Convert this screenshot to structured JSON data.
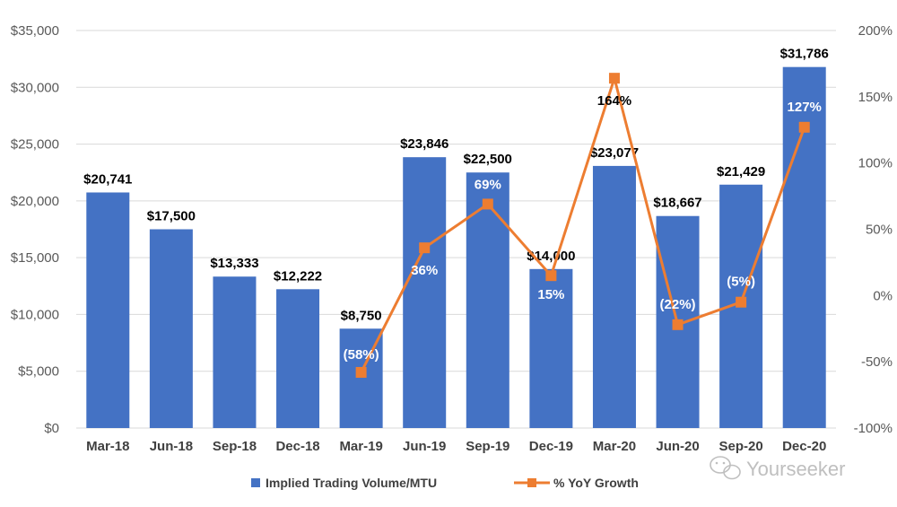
{
  "chart_data": {
    "type": "bar",
    "categories": [
      "Mar-18",
      "Jun-18",
      "Sep-18",
      "Dec-18",
      "Mar-19",
      "Jun-19",
      "Sep-19",
      "Dec-19",
      "Mar-20",
      "Jun-20",
      "Sep-20",
      "Dec-20"
    ],
    "series": [
      {
        "name": "Implied Trading Volume/MTU",
        "type": "bar",
        "axis": "left",
        "color": "#4472C4",
        "values": [
          20741,
          17500,
          13333,
          12222,
          8750,
          23846,
          22500,
          14000,
          23077,
          18667,
          21429,
          31786
        ],
        "labels": [
          "$20,741",
          "$17,500",
          "$13,333",
          "$12,222",
          "$8,750",
          "$23,846",
          "$22,500",
          "$14,000",
          "$23,077",
          "$18,667",
          "$21,429",
          "$31,786"
        ]
      },
      {
        "name": "% YoY Growth",
        "type": "line",
        "axis": "right",
        "color": "#ED7D31",
        "marker": "square",
        "values": [
          null,
          null,
          null,
          null,
          -58,
          36,
          69,
          15,
          164,
          -22,
          -5,
          127
        ],
        "labels": [
          "",
          "",
          "",
          "",
          "(58%)",
          "36%",
          "69%",
          "15%",
          "164%",
          "(22%)",
          "(5%)",
          "127%"
        ]
      }
    ],
    "y_left": {
      "lim": [
        0,
        35000
      ],
      "ticks": [
        0,
        5000,
        10000,
        15000,
        20000,
        25000,
        30000,
        35000
      ],
      "tick_labels": [
        "$0",
        "$5,000",
        "$10,000",
        "$15,000",
        "$20,000",
        "$25,000",
        "$30,000",
        "$35,000"
      ]
    },
    "y_right": {
      "lim": [
        -100,
        200
      ],
      "ticks": [
        -100,
        -50,
        0,
        50,
        100,
        150,
        200
      ],
      "tick_labels": [
        "-100%",
        "-50%",
        "0%",
        "50%",
        "100%",
        "150%",
        "200%"
      ]
    },
    "grid": true,
    "legend": "bottom-center"
  },
  "watermark": "Yourseeker"
}
